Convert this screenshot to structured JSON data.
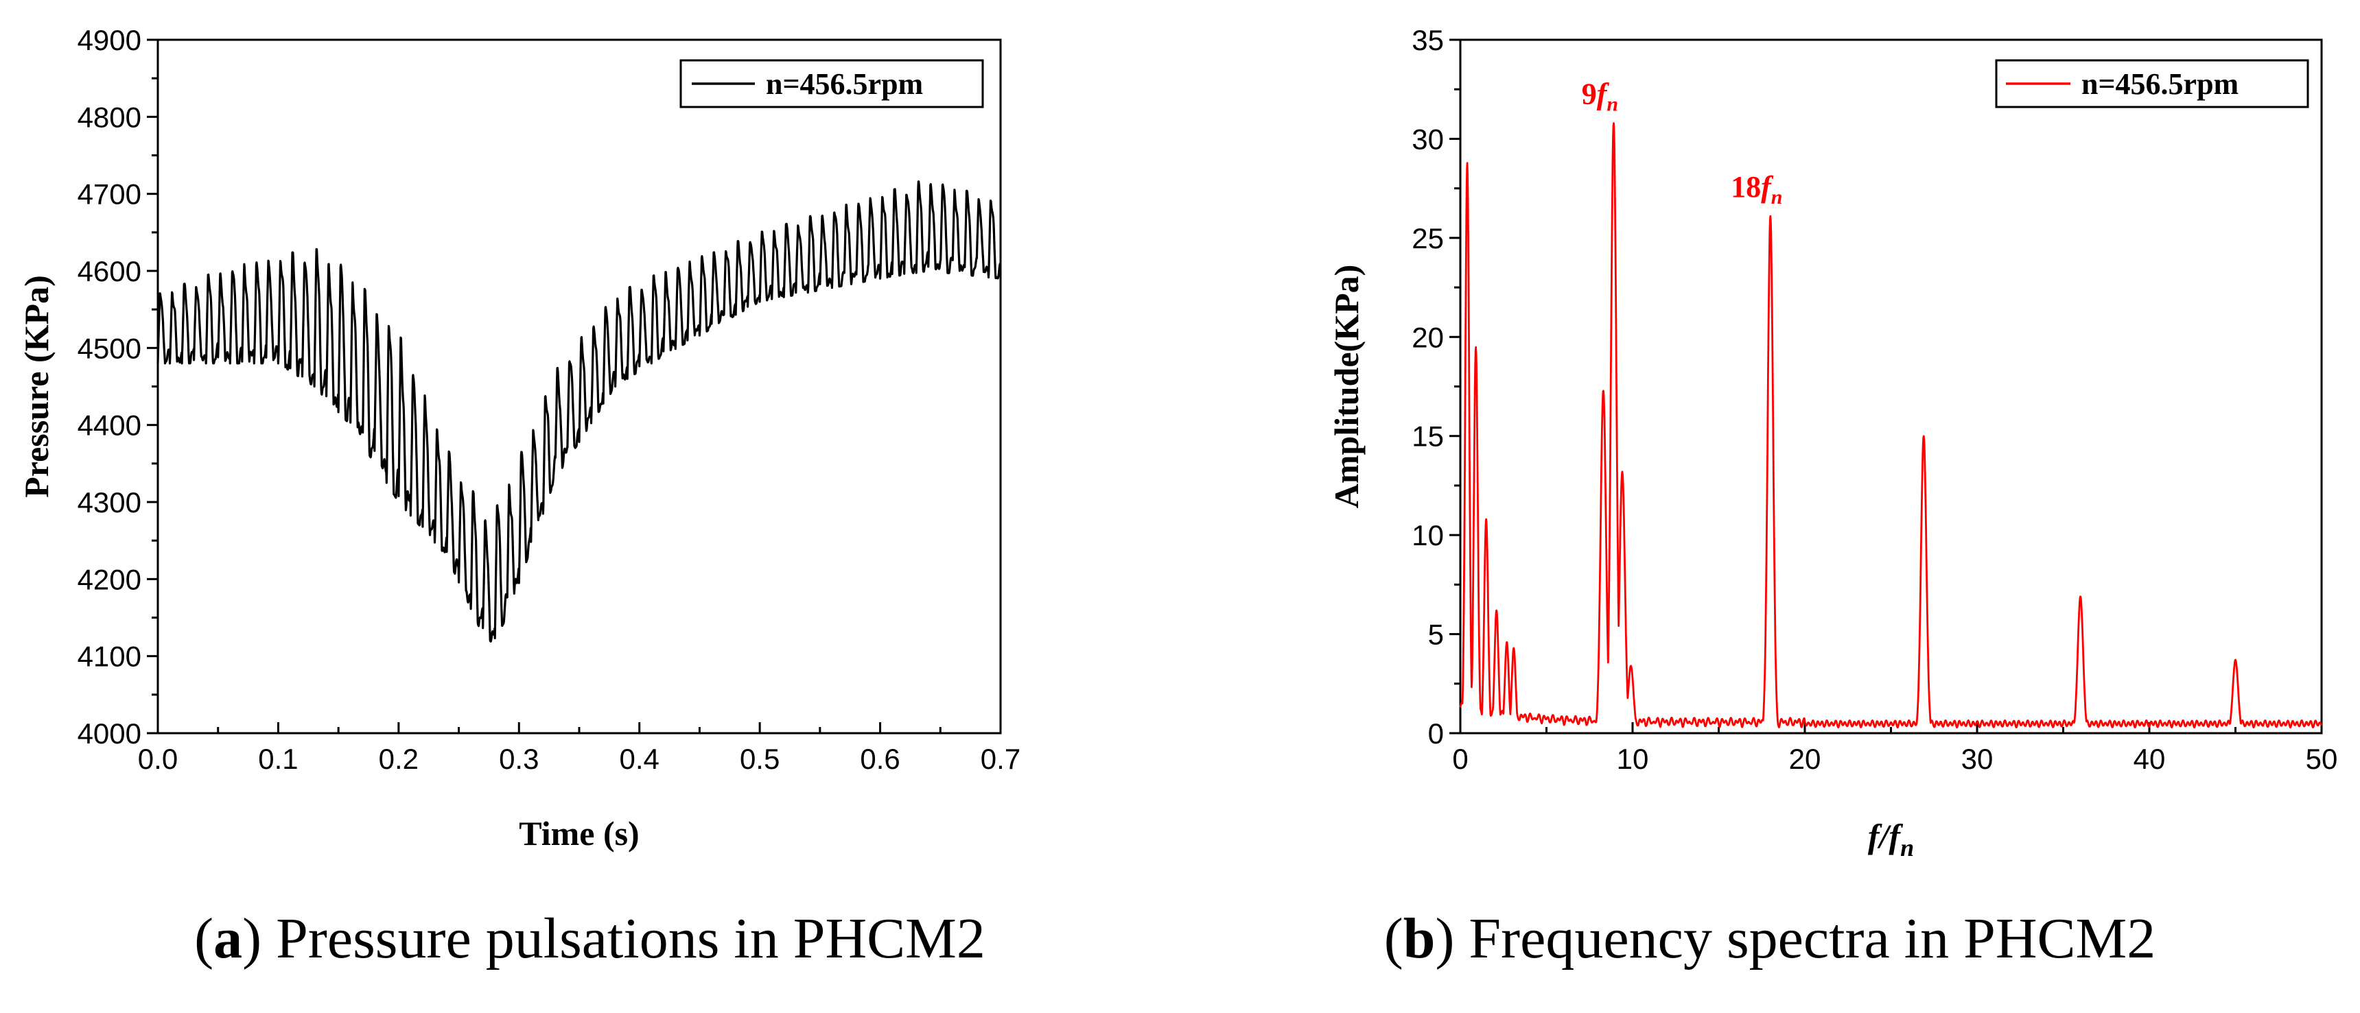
{
  "chart_data": [
    {
      "type": "line",
      "panel_id": "a",
      "color": "#000000",
      "xlabel": "Time (s)",
      "ylabel": "Pressure (KPa)",
      "xlim": [
        0.0,
        0.7
      ],
      "ylim": [
        4000,
        4900
      ],
      "x_ticks": [
        "0.0",
        "0.1",
        "0.2",
        "0.3",
        "0.4",
        "0.5",
        "0.6",
        "0.7"
      ],
      "y_ticks": [
        "4000",
        "4100",
        "4200",
        "4300",
        "4400",
        "4500",
        "4600",
        "4700",
        "4800",
        "4900"
      ],
      "legend": "n=456.5rpm",
      "pulse_period_s": 0.01,
      "envelope": {
        "t": [
          0.0,
          0.05,
          0.1,
          0.13,
          0.16,
          0.2,
          0.24,
          0.275,
          0.29,
          0.33,
          0.38,
          0.42,
          0.5,
          0.6,
          0.64,
          0.7
        ],
        "upper": [
          4570,
          4600,
          4620,
          4630,
          4600,
          4520,
          4370,
          4280,
          4320,
          4470,
          4570,
          4600,
          4650,
          4700,
          4720,
          4690
        ],
        "lower": [
          4480,
          4480,
          4480,
          4450,
          4400,
          4300,
          4230,
          4110,
          4150,
          4330,
          4450,
          4490,
          4560,
          4590,
          4600,
          4590
        ]
      },
      "peak_max": 4720,
      "trough_min": 4105
    },
    {
      "type": "line",
      "panel_id": "b",
      "color": "#ff0000",
      "xlabel_main": "f",
      "xlabel_sep": "/",
      "xlabel_sub": "n",
      "ylabel": "Amplitude(KPa)",
      "xlim": [
        0,
        50
      ],
      "ylim": [
        0,
        35
      ],
      "x_ticks": [
        "0",
        "10",
        "20",
        "30",
        "40",
        "50"
      ],
      "y_ticks": [
        "0",
        "5",
        "10",
        "15",
        "20",
        "25",
        "30",
        "35"
      ],
      "legend": "n=456.5rpm",
      "peaks": [
        {
          "x": 0.4,
          "y": 28.8
        },
        {
          "x": 0.9,
          "y": 19.5
        },
        {
          "x": 1.5,
          "y": 10.8
        },
        {
          "x": 2.1,
          "y": 6.2
        },
        {
          "x": 2.7,
          "y": 4.6
        },
        {
          "x": 3.1,
          "y": 4.3
        },
        {
          "x": 8.3,
          "y": 17.3
        },
        {
          "x": 8.9,
          "y": 30.8
        },
        {
          "x": 9.4,
          "y": 13.2
        },
        {
          "x": 9.9,
          "y": 3.4
        },
        {
          "x": 18.0,
          "y": 26.1
        },
        {
          "x": 26.9,
          "y": 15.0
        },
        {
          "x": 36.0,
          "y": 6.9
        },
        {
          "x": 45.0,
          "y": 3.7
        }
      ],
      "annotations": [
        {
          "main": "9",
          "sub": "n",
          "x": 8.9,
          "y": 30.8
        },
        {
          "main": "18",
          "sub": "n",
          "x": 18.0,
          "y": 26.1
        }
      ],
      "baseline_level": 0.4
    }
  ],
  "captions": {
    "a": {
      "letter": "a",
      "text": "Pressure pulsations in PHCM2"
    },
    "b": {
      "letter": "b",
      "text": "Frequency spectra in PHCM2"
    }
  }
}
